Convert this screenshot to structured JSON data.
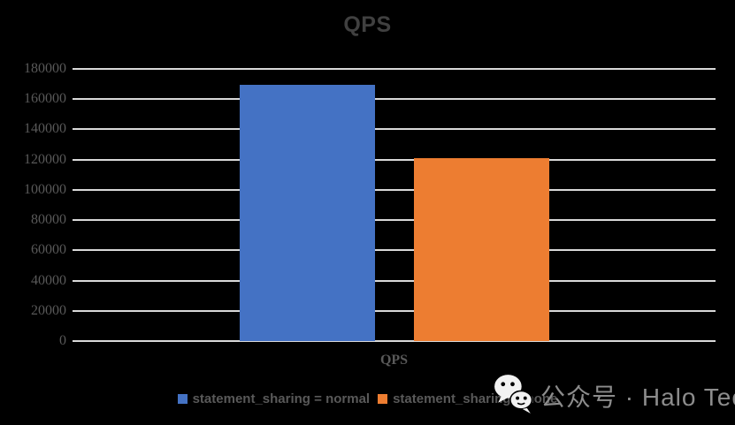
{
  "chart_data": {
    "type": "bar",
    "title": "QPS",
    "categories": [
      "QPS"
    ],
    "series": [
      {
        "name": "statement_sharing = normal",
        "value": 169500,
        "color": "#4472C4"
      },
      {
        "name": "statement_sharing = none",
        "value": 121000,
        "color": "#ED7D31"
      }
    ],
    "ylim": [
      0,
      180000
    ],
    "ytick_step": 20000,
    "yticks": [
      0,
      20000,
      40000,
      60000,
      80000,
      100000,
      120000,
      140000,
      160000,
      180000
    ],
    "grid": true,
    "legend_position": "bottom",
    "colors": {
      "background": "#000000",
      "gridline": "#D9D9D9",
      "title": "#404040",
      "axis_labels": "#595959",
      "legend_text": "#595959"
    }
  },
  "watermark": {
    "icon": "wechat-icon",
    "text": "公众号 · Halo Tech",
    "color": "#8C8C8C"
  }
}
